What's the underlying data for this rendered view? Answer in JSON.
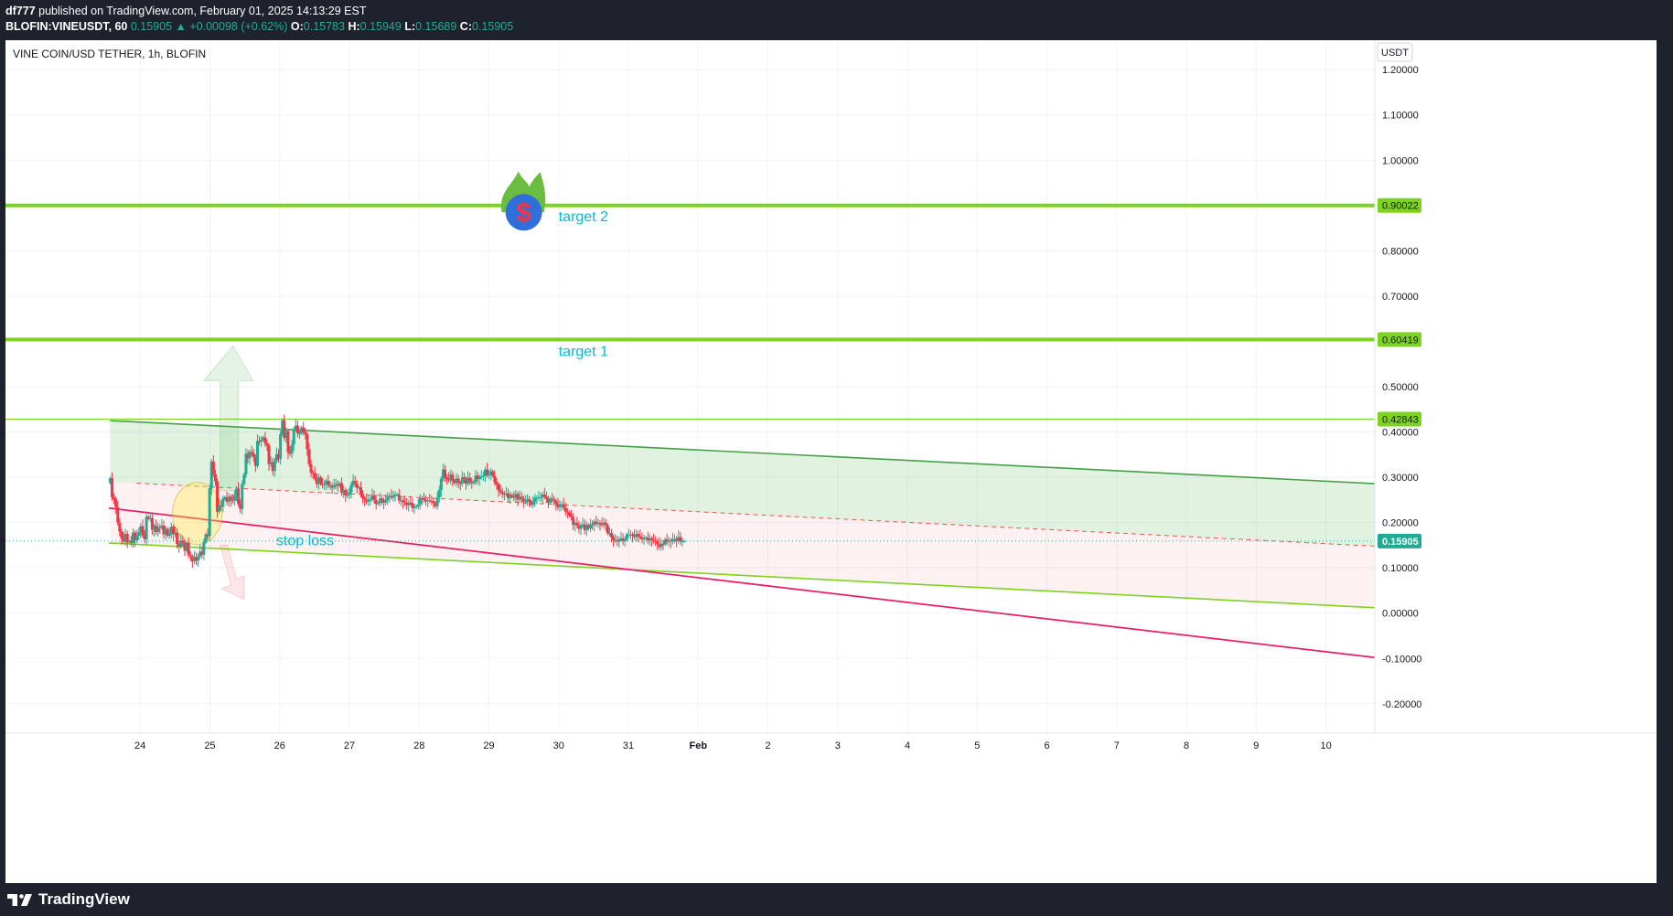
{
  "header": {
    "author": "df777",
    "published_text": "published on TradingView.com, February 01, 2025 14:13:29 EST",
    "symbol": "BLOFIN:VINEUSDT, 60",
    "last": "0.15905",
    "change": "▲ +0.00098 (+0.62%)",
    "o_label": "O:",
    "o_value": "0.15783",
    "h_label": "H:",
    "h_value": "0.15949",
    "l_label": "L:",
    "l_value": "0.15689",
    "c_label": "C:",
    "c_value": "0.15905"
  },
  "chart_title": "VINE COIN/USD TETHER, 1h, BLOFIN",
  "footer": {
    "brand": "TradingView"
  },
  "colors": {
    "up": "#22ab94",
    "down": "#f23645",
    "target_line": "#7ed321",
    "channel_upper": "#43a047",
    "channel_lower": "#7ed321",
    "stop_line": "#e91e63",
    "label_text": "#00bcd4",
    "last_price_badge": "#22ab94"
  },
  "chart_data": {
    "type": "candlestick",
    "currency_label": "USDT",
    "y_ticks": [
      "1.20000",
      "1.10000",
      "1.00000",
      "0.90000",
      "0.80000",
      "0.70000",
      "0.60000",
      "0.50000",
      "0.40000",
      "0.30000",
      "0.20000",
      "0.10000",
      "0.00000",
      "-0.10000",
      "-0.20000"
    ],
    "y_tick_values": [
      1.2,
      1.1,
      1.0,
      0.9,
      0.8,
      0.7,
      0.6,
      0.5,
      0.4,
      0.3,
      0.2,
      0.1,
      0.0,
      -0.1,
      -0.2
    ],
    "ylim": [
      -0.265,
      1.265
    ],
    "x_ticks": [
      "24",
      "25",
      "26",
      "27",
      "28",
      "29",
      "30",
      "31",
      "Feb",
      "2",
      "3",
      "4",
      "5",
      "6",
      "7",
      "8",
      "9",
      "10"
    ],
    "x_tick_days": [
      0,
      1,
      2,
      3,
      4,
      5,
      6,
      7,
      8,
      9,
      10,
      11,
      12,
      13,
      14,
      15,
      16,
      17
    ],
    "xlim_days": [
      -1.93,
      17.7
    ],
    "price_levels": [
      {
        "value": 0.90022,
        "label": "0.90022",
        "style": "thick"
      },
      {
        "value": 0.60419,
        "label": "0.60419",
        "style": "thick"
      },
      {
        "value": 0.42843,
        "label": "0.42843",
        "style": "thin"
      }
    ],
    "last_price": {
      "value": 0.15905,
      "label": "0.15905"
    },
    "annotations": [
      {
        "text": "target 2",
        "day": 6.0,
        "value": 0.865
      },
      {
        "text": "target 1",
        "day": 6.0,
        "value": 0.568
      },
      {
        "text": "stop loss",
        "day": 1.95,
        "value": 0.15
      }
    ],
    "channel": {
      "upper": {
        "from": [
          -0.43,
          0.425
        ],
        "to": [
          17.7,
          0.286
        ]
      },
      "mid": {
        "from": [
          -0.05,
          0.287
        ],
        "to": [
          17.7,
          0.148
        ]
      },
      "lower": {
        "from": [
          -0.45,
          0.155
        ],
        "to": [
          17.7,
          0.012
        ]
      },
      "stop": {
        "from": [
          -0.45,
          0.232
        ],
        "to": [
          17.7,
          -0.098
        ]
      }
    },
    "stop_zone_circle": {
      "day": 0.82,
      "value": 0.22
    },
    "arrows": {
      "up": {
        "day": 1.2,
        "from": 0.27,
        "to": 0.59
      },
      "down": {
        "day": 1.2,
        "from": 0.15,
        "to": 0.03
      }
    },
    "candles_close": [
      0.298,
      0.256,
      0.252,
      0.234,
      0.2,
      0.18,
      0.165,
      0.158,
      0.175,
      0.156,
      0.158,
      0.155,
      0.178,
      0.161,
      0.171,
      0.179,
      0.192,
      0.172,
      0.163,
      0.213,
      0.209,
      0.21,
      0.184,
      0.193,
      0.179,
      0.19,
      0.189,
      0.193,
      0.174,
      0.186,
      0.171,
      0.176,
      0.191,
      0.174,
      0.178,
      0.153,
      0.147,
      0.16,
      0.156,
      0.138,
      0.155,
      0.128,
      0.125,
      0.115,
      0.124,
      0.116,
      0.125,
      0.136,
      0.129,
      0.157,
      0.174,
      0.17,
      0.276,
      0.335,
      0.307,
      0.291,
      0.224,
      0.238,
      0.235,
      0.253,
      0.256,
      0.246,
      0.257,
      0.25,
      0.248,
      0.261,
      0.274,
      0.241,
      0.23,
      0.285,
      0.306,
      0.352,
      0.342,
      0.356,
      0.353,
      0.344,
      0.325,
      0.38,
      0.379,
      0.383,
      0.388,
      0.375,
      0.37,
      0.329,
      0.333,
      0.314,
      0.336,
      0.351,
      0.341,
      0.395,
      0.426,
      0.387,
      0.402,
      0.355,
      0.352,
      0.372,
      0.405,
      0.414,
      0.397,
      0.397,
      0.41,
      0.4,
      0.395,
      0.362,
      0.329,
      0.31,
      0.309,
      0.297,
      0.285,
      0.3,
      0.286,
      0.283,
      0.286,
      0.292,
      0.282,
      0.282,
      0.277,
      0.282,
      0.285,
      0.281,
      0.287,
      0.266,
      0.272,
      0.26,
      0.261,
      0.267,
      0.283,
      0.292,
      0.286,
      0.277,
      0.278,
      0.263,
      0.254,
      0.251,
      0.246,
      0.251,
      0.251,
      0.26,
      0.25,
      0.241,
      0.243,
      0.253,
      0.25,
      0.244,
      0.249,
      0.257,
      0.259,
      0.255,
      0.259,
      0.262,
      0.262,
      0.249,
      0.249,
      0.246,
      0.244,
      0.238,
      0.244,
      0.243,
      0.232,
      0.234,
      0.236,
      0.24,
      0.254,
      0.253,
      0.25,
      0.247,
      0.249,
      0.248,
      0.247,
      0.243,
      0.236,
      0.255,
      0.272,
      0.297,
      0.317,
      0.3,
      0.297,
      0.293,
      0.306,
      0.292,
      0.287,
      0.297,
      0.287,
      0.286,
      0.3,
      0.296,
      0.286,
      0.299,
      0.291,
      0.287,
      0.29,
      0.304,
      0.296,
      0.301,
      0.302,
      0.303,
      0.317,
      0.305,
      0.306,
      0.313,
      0.303,
      0.289,
      0.284,
      0.271,
      0.267,
      0.264,
      0.263,
      0.264,
      0.254,
      0.261,
      0.257,
      0.255,
      0.263,
      0.251,
      0.257,
      0.253,
      0.246,
      0.246,
      0.251,
      0.247,
      0.239,
      0.246,
      0.255,
      0.255,
      0.256,
      0.256,
      0.262,
      0.257,
      0.252,
      0.244,
      0.253,
      0.251,
      0.248,
      0.241,
      0.234,
      0.24,
      0.24,
      0.233,
      0.224,
      0.222,
      0.216,
      0.212,
      0.195,
      0.199,
      0.194,
      0.186,
      0.194,
      0.196,
      0.183,
      0.195,
      0.187,
      0.196,
      0.195,
      0.202,
      0.198,
      0.199,
      0.196,
      0.195,
      0.2,
      0.194,
      0.176,
      0.177,
      0.168,
      0.161,
      0.161,
      0.158,
      0.163,
      0.165,
      0.159,
      0.162,
      0.174,
      0.174,
      0.174,
      0.171,
      0.168,
      0.175,
      0.17,
      0.167,
      0.163,
      0.166,
      0.167,
      0.16,
      0.165,
      0.162,
      0.16,
      0.158,
      0.153,
      0.146,
      0.153,
      0.152,
      0.163,
      0.158,
      0.16,
      0.158,
      0.164,
      0.164,
      0.159,
      0.168,
      0.159,
      0.159,
      0.159
    ]
  }
}
